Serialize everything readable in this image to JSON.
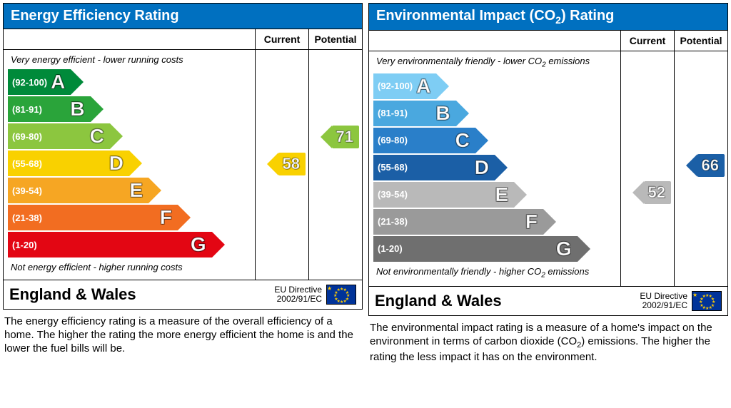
{
  "energy": {
    "title_pre": "Energy Efficiency Rating",
    "col_current": "Current",
    "col_potential": "Potential",
    "hint_top": "Very energy efficient - lower running costs",
    "hint_bottom": "Not energy efficient - higher running costs",
    "bands": [
      {
        "range": "(92-100)",
        "letter": "A",
        "color": "#008a3a",
        "width_pct": 26
      },
      {
        "range": "(81-91)",
        "letter": "B",
        "color": "#2aa43a",
        "width_pct": 34
      },
      {
        "range": "(69-80)",
        "letter": "C",
        "color": "#8cc63f",
        "width_pct": 42
      },
      {
        "range": "(55-68)",
        "letter": "D",
        "color": "#f9d100",
        "width_pct": 50
      },
      {
        "range": "(39-54)",
        "letter": "E",
        "color": "#f6a623",
        "width_pct": 58
      },
      {
        "range": "(21-38)",
        "letter": "F",
        "color": "#f26d21",
        "width_pct": 70
      },
      {
        "range": "(1-20)",
        "letter": "G",
        "color": "#e30613",
        "width_pct": 84
      }
    ],
    "current": {
      "value": "58",
      "band_index": 3,
      "color": "#f9d100"
    },
    "potential": {
      "value": "71",
      "band_index": 2,
      "color": "#8cc63f"
    },
    "region": "England & Wales",
    "directive_l1": "EU Directive",
    "directive_l2": "2002/91/EC",
    "desc": "The energy efficiency rating is a measure of the overall efficiency of a home. The higher the rating the more energy efficient the home is and the lower the fuel bills will be."
  },
  "enviro": {
    "title_pre": "Environmental Impact (CO",
    "title_sub": "2",
    "title_post": ") Rating",
    "col_current": "Current",
    "col_potential": "Potential",
    "hint_top_pre": "Very environmentally friendly - lower CO",
    "hint_top_sub": "2",
    "hint_top_post": " emissions",
    "hint_bottom_pre": "Not environmentally friendly - higher CO",
    "hint_bottom_sub": "2",
    "hint_bottom_post": " emissions",
    "bands": [
      {
        "range": "(92-100)",
        "letter": "A",
        "color": "#7ecdf4",
        "width_pct": 26
      },
      {
        "range": "(81-91)",
        "letter": "B",
        "color": "#4aa8df",
        "width_pct": 34
      },
      {
        "range": "(69-80)",
        "letter": "C",
        "color": "#2a7fc9",
        "width_pct": 42
      },
      {
        "range": "(55-68)",
        "letter": "D",
        "color": "#1b5fa6",
        "width_pct": 50
      },
      {
        "range": "(39-54)",
        "letter": "E",
        "color": "#b9b9b9",
        "width_pct": 58
      },
      {
        "range": "(21-38)",
        "letter": "F",
        "color": "#9a9a9a",
        "width_pct": 70
      },
      {
        "range": "(1-20)",
        "letter": "G",
        "color": "#6f6f6f",
        "width_pct": 84
      }
    ],
    "current": {
      "value": "52",
      "band_index": 4,
      "color": "#b9b9b9"
    },
    "potential": {
      "value": "66",
      "band_index": 3,
      "color": "#1b5fa6"
    },
    "region": "England & Wales",
    "directive_l1": "EU Directive",
    "directive_l2": "2002/91/EC",
    "desc_pre": "The environmental impact rating is a measure of a home's impact on the environment in terms of carbon dioxide (CO",
    "desc_sub": "2",
    "desc_post": ") emissions. The higher the rating the less impact it has on the environment."
  },
  "layout": {
    "band_height": 36,
    "band_gap": 2,
    "top_pad": 28
  }
}
